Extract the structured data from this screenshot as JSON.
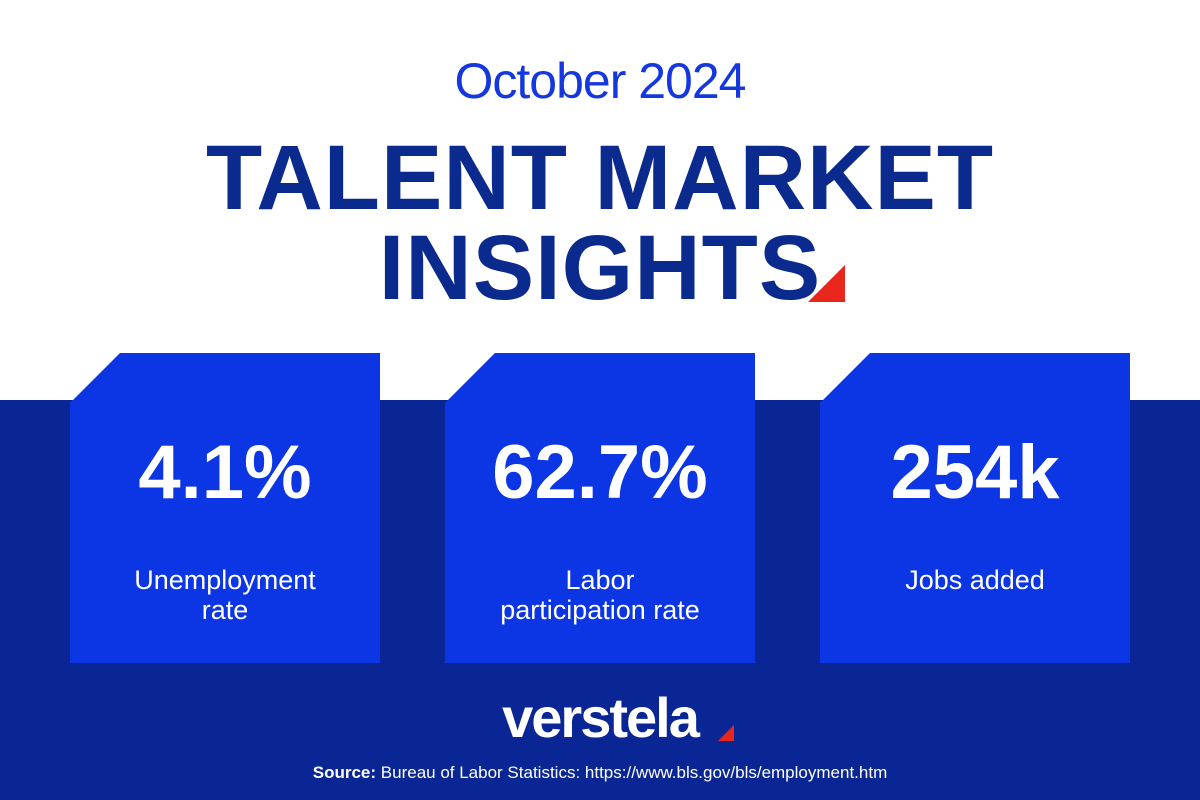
{
  "header": {
    "subtitle": "October 2024",
    "title_lines": [
      "TALENT MARKET",
      "INSIGHTS"
    ]
  },
  "stats": [
    {
      "value": "4.1%",
      "label": "Unemployment rate"
    },
    {
      "value": "62.7%",
      "label": "Labor participation rate"
    },
    {
      "value": "254k",
      "label": "Jobs added"
    }
  ],
  "logo": "verstela",
  "source": {
    "label": "Source:",
    "text": "Bureau of Labor Statistics: https://www.bls.gov/bls/employment.htm"
  }
}
